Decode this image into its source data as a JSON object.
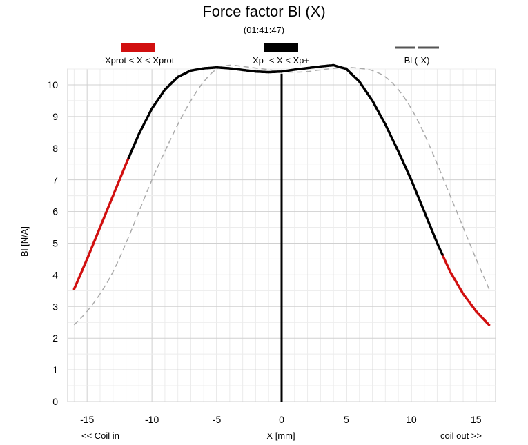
{
  "chart_data": {
    "type": "line",
    "title": "Force factor Bl (X)",
    "subtitle": "(01:41:47)",
    "xlabel": "X [mm]",
    "ylabel": "Bl [N/A]",
    "x_left_note": "<< Coil in",
    "x_right_note": "coil out >>",
    "xlim": [
      -16.5,
      16.5
    ],
    "ylim": [
      0,
      10.5
    ],
    "xticks": [
      -15,
      -10,
      -5,
      0,
      5,
      10,
      15
    ],
    "yticks": [
      0,
      1,
      2,
      3,
      4,
      5,
      6,
      7,
      8,
      9,
      10
    ],
    "grid": true,
    "vertical_marker_x": 0,
    "legend": [
      {
        "label": "-Xprot < X < Xprot",
        "color": "#d10f0f"
      },
      {
        "label": "Xp- < X < Xp+",
        "color": "#000000"
      },
      {
        "label": "Bl (-X)",
        "color": "#555555"
      }
    ],
    "xprot_range": [
      -12,
      12.4
    ],
    "xp_range": [
      -11.8,
      12.4
    ],
    "series": [
      {
        "name": "Bl (X)",
        "color": "#000000",
        "x": [
          -16,
          -15,
          -14,
          -13,
          -12,
          -11,
          -10,
          -9,
          -8,
          -7,
          -6,
          -5,
          -4,
          -3,
          -2,
          -1,
          0,
          1,
          2,
          3,
          4,
          5,
          6,
          7,
          8,
          9,
          10,
          11,
          12,
          13,
          14,
          15,
          16
        ],
        "y": [
          3.55,
          4.5,
          5.5,
          6.5,
          7.5,
          8.45,
          9.25,
          9.85,
          10.25,
          10.45,
          10.52,
          10.55,
          10.52,
          10.47,
          10.42,
          10.4,
          10.42,
          10.48,
          10.53,
          10.58,
          10.62,
          10.5,
          10.1,
          9.5,
          8.75,
          7.9,
          7.0,
          6.0,
          5.0,
          4.1,
          3.4,
          2.85,
          2.42
        ]
      },
      {
        "name": "Bl (-X)",
        "color": "#aaaaaa",
        "x": [
          -16,
          -15,
          -14,
          -13,
          -12,
          -11,
          -10,
          -9,
          -8,
          -7,
          -6,
          -5,
          -4,
          -3,
          -2,
          -1,
          0,
          1,
          2,
          3,
          4,
          5,
          6,
          7,
          8,
          9,
          10,
          11,
          12,
          13,
          14,
          15,
          16
        ],
        "y": [
          2.42,
          2.85,
          3.4,
          4.1,
          5.0,
          6.0,
          7.0,
          7.9,
          8.75,
          9.5,
          10.1,
          10.5,
          10.62,
          10.58,
          10.53,
          10.48,
          10.42,
          10.4,
          10.42,
          10.47,
          10.52,
          10.55,
          10.52,
          10.45,
          10.25,
          9.85,
          9.25,
          8.45,
          7.5,
          6.5,
          5.5,
          4.5,
          3.55
        ]
      }
    ]
  }
}
